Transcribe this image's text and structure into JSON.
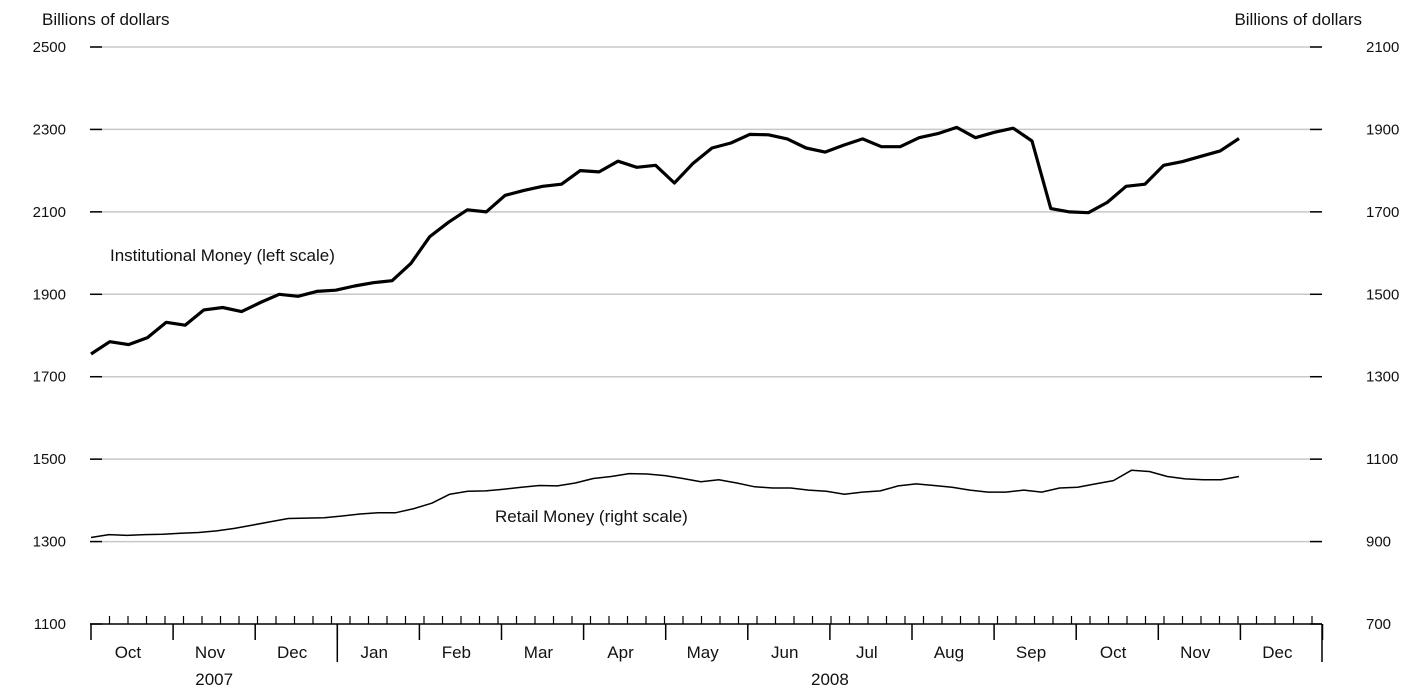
{
  "chart_data": {
    "type": "line",
    "left_axis_title": "Billions of dollars",
    "right_axis_title": "Billions of dollars",
    "left_ticks": [
      "2500",
      "2300",
      "2100",
      "1900",
      "1700",
      "1500",
      "1300",
      "1100"
    ],
    "right_ticks": [
      "2100",
      "1900",
      "1700",
      "1500",
      "1300",
      "1100",
      "900",
      "700"
    ],
    "ylim_left": [
      1100,
      2500
    ],
    "ylim_right": [
      700,
      2100
    ],
    "grid": true,
    "months": [
      "Oct",
      "Nov",
      "Dec",
      "Jan",
      "Feb",
      "Mar",
      "Apr",
      "May",
      "Jun",
      "Jul",
      "Aug",
      "Sep",
      "Oct",
      "Nov",
      "Dec"
    ],
    "years": [
      {
        "label": "2007",
        "start_month": 0,
        "end_month": 2
      },
      {
        "label": "2008",
        "start_month": 3,
        "end_month": 14
      }
    ],
    "series": [
      {
        "name": "Institutional Money (left scale)",
        "axis": "left",
        "color": "#000000",
        "values": [
          1755,
          1785,
          1778,
          1795,
          1832,
          1825,
          1862,
          1868,
          1858,
          1880,
          1900,
          1895,
          1907,
          1910,
          1920,
          1928,
          1933,
          1975,
          2040,
          2075,
          2105,
          2100,
          2140,
          2152,
          2162,
          2167,
          2200,
          2197,
          2223,
          2208,
          2213,
          2170,
          2218,
          2255,
          2267,
          2288,
          2287,
          2277,
          2255,
          2245,
          2262,
          2277,
          2258,
          2258,
          2280,
          2290,
          2305,
          2280,
          2293,
          2303,
          2272,
          2108,
          2100,
          2098,
          2123,
          2162,
          2167,
          2213,
          2222,
          2235,
          2248,
          2278
        ]
      },
      {
        "name": "Retail Money (right scale)",
        "axis": "right",
        "color": "#000000",
        "values": [
          910,
          917,
          915,
          917,
          918,
          920,
          922,
          926,
          932,
          940,
          948,
          956,
          957,
          958,
          962,
          967,
          970,
          970,
          980,
          993,
          1015,
          1022,
          1023,
          1027,
          1032,
          1036,
          1035,
          1042,
          1053,
          1058,
          1065,
          1064,
          1060,
          1053,
          1045,
          1050,
          1042,
          1033,
          1030,
          1030,
          1025,
          1022,
          1015,
          1020,
          1023,
          1035,
          1040,
          1036,
          1032,
          1025,
          1020,
          1020,
          1025,
          1020,
          1030,
          1032,
          1040,
          1048,
          1073,
          1070,
          1058,
          1052,
          1050,
          1050,
          1058
        ]
      }
    ]
  }
}
